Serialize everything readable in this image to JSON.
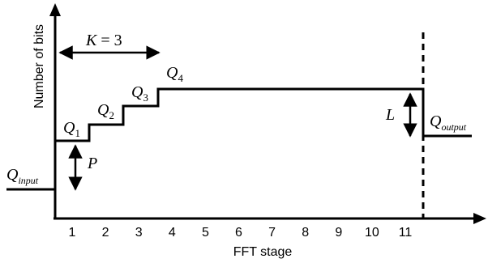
{
  "axes": {
    "xlabel": "FFT stage",
    "ylabel": "Number of bits",
    "stages": [
      "1",
      "2",
      "3",
      "4",
      "5",
      "6",
      "7",
      "8",
      "9",
      "10",
      "11"
    ]
  },
  "labels": {
    "q_input_main": "Q",
    "q_input_sub": "input",
    "q1_main": "Q",
    "q1_sub": "1",
    "q2_main": "Q",
    "q2_sub": "2",
    "q3_main": "Q",
    "q3_sub": "3",
    "q4_main": "Q",
    "q4_sub": "4",
    "q_output_main": "Q",
    "q_output_sub": "output",
    "p": "P",
    "l": "L",
    "k_var": "K",
    "k_eq": " = 3"
  }
}
